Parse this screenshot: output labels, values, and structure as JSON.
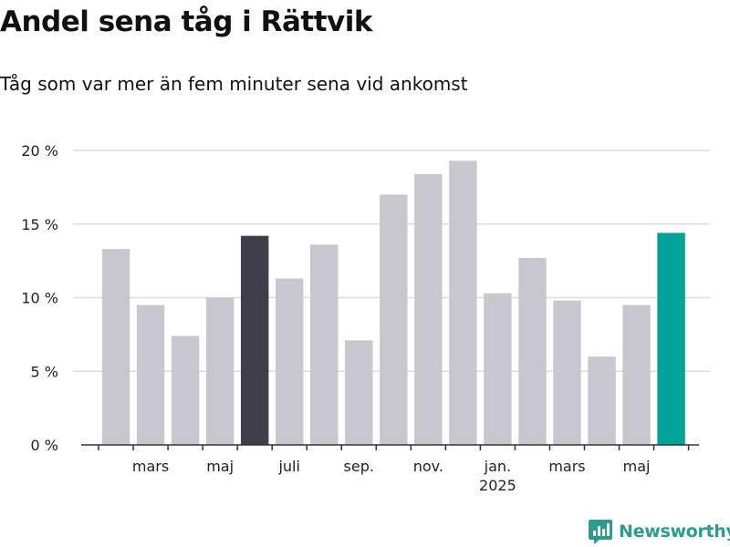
{
  "header": {
    "title": "Andel sena tåg i Rättvik",
    "subtitle": "Tåg som var mer än fem minuter sena vid ankomst"
  },
  "brand": {
    "name": "Newsworthy",
    "icon": "newsworthy-logo-icon",
    "color": "#2a9d8f"
  },
  "chart_data": {
    "type": "bar",
    "title": "Andel sena tåg i Rättvik",
    "subtitle": "Tåg som var mer än fem minuter sena vid ankomst",
    "xlabel": "",
    "ylabel": "",
    "unit": "%",
    "ylim": [
      0,
      20
    ],
    "yticks": [
      0,
      5,
      10,
      15,
      20
    ],
    "ytick_labels": [
      "0 %",
      "5 %",
      "10 %",
      "15 %",
      "20 %"
    ],
    "grid": true,
    "months": [
      "2024-02",
      "2024-03",
      "2024-04",
      "2024-05",
      "2024-06",
      "2024-07",
      "2024-08",
      "2024-09",
      "2024-10",
      "2024-11",
      "2024-12",
      "2025-01",
      "2025-02",
      "2025-03",
      "2025-04",
      "2025-05",
      "2025-06"
    ],
    "values": [
      13.3,
      9.5,
      7.4,
      10.0,
      14.2,
      11.3,
      13.6,
      7.1,
      17.0,
      18.4,
      19.3,
      10.3,
      12.7,
      9.8,
      6.0,
      9.5,
      14.4
    ],
    "highlight": {
      "2024-06": "#3f3e4a",
      "2025-06": "#00a39a"
    },
    "bar_color": "#c8c7cf",
    "xtick_labels": [
      {
        "month": "2024-03",
        "label": "mars"
      },
      {
        "month": "2024-05",
        "label": "maj"
      },
      {
        "month": "2024-07",
        "label": "juli"
      },
      {
        "month": "2024-09",
        "label": "sep."
      },
      {
        "month": "2024-11",
        "label": "nov."
      },
      {
        "month": "2025-01",
        "label": "jan.",
        "sublabel": "2025"
      },
      {
        "month": "2025-03",
        "label": "mars"
      },
      {
        "month": "2025-05",
        "label": "maj"
      }
    ]
  }
}
